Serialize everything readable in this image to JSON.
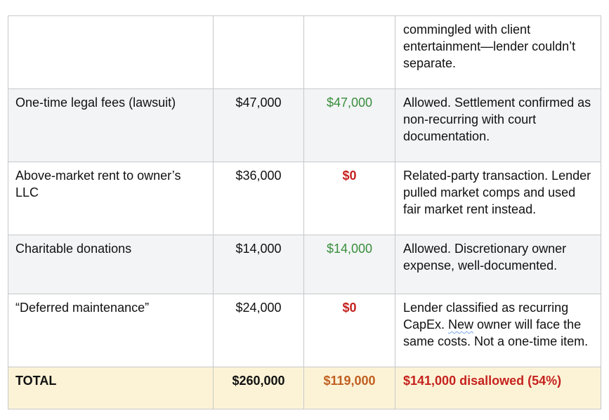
{
  "colors": {
    "text": "#111111",
    "border": "#c6c8ca",
    "row_shade": "#f3f4f6",
    "total_bg": "#fcf3d6",
    "allowed_green": "#388e3c",
    "disallowed_red": "#c5221f",
    "subtotal_orange": "#c05f21",
    "squiggle_blue": "#78a5e6"
  },
  "table": {
    "rows": [
      {
        "row_style": "plain",
        "item": "",
        "claimed": "",
        "allowed": "",
        "allowed_status": "",
        "notes": "commingled with client entertainment—lender couldn’t separate."
      },
      {
        "row_style": "shaded",
        "item": "One-time legal fees (lawsuit)",
        "claimed": "$47,000",
        "allowed": "$47,000",
        "allowed_status": "allowed",
        "notes": "Allowed. Settlement confirmed as non-recurring with court documentation."
      },
      {
        "row_style": "plain",
        "item": "Above-market rent to owner’s LLC",
        "claimed": "$36,000",
        "allowed": "$0",
        "allowed_status": "disallowed",
        "notes": "Related-party transaction. Lender pulled market comps and used fair market rent instead."
      },
      {
        "row_style": "shaded",
        "item": "Charitable donations",
        "claimed": "$14,000",
        "allowed": "$14,000",
        "allowed_status": "allowed",
        "notes": "Allowed. Discretionary owner expense, well-documented."
      },
      {
        "row_style": "plain",
        "item": "“Deferred maintenance”",
        "claimed": "$24,000",
        "allowed": "$0",
        "allowed_status": "disallowed",
        "notes_before_flag": "Lender classified as recurring CapEx. ",
        "notes_flagged_word": "New",
        "notes_after_flag": " owner will face the same costs. Not a one-time item."
      },
      {
        "row_style": "total",
        "item": "TOTAL",
        "claimed": "$260,000",
        "allowed": "$119,000",
        "allowed_status": "subtotal",
        "notes": "$141,000 disallowed (54%)",
        "notes_status": "disallowed_summary"
      }
    ]
  }
}
